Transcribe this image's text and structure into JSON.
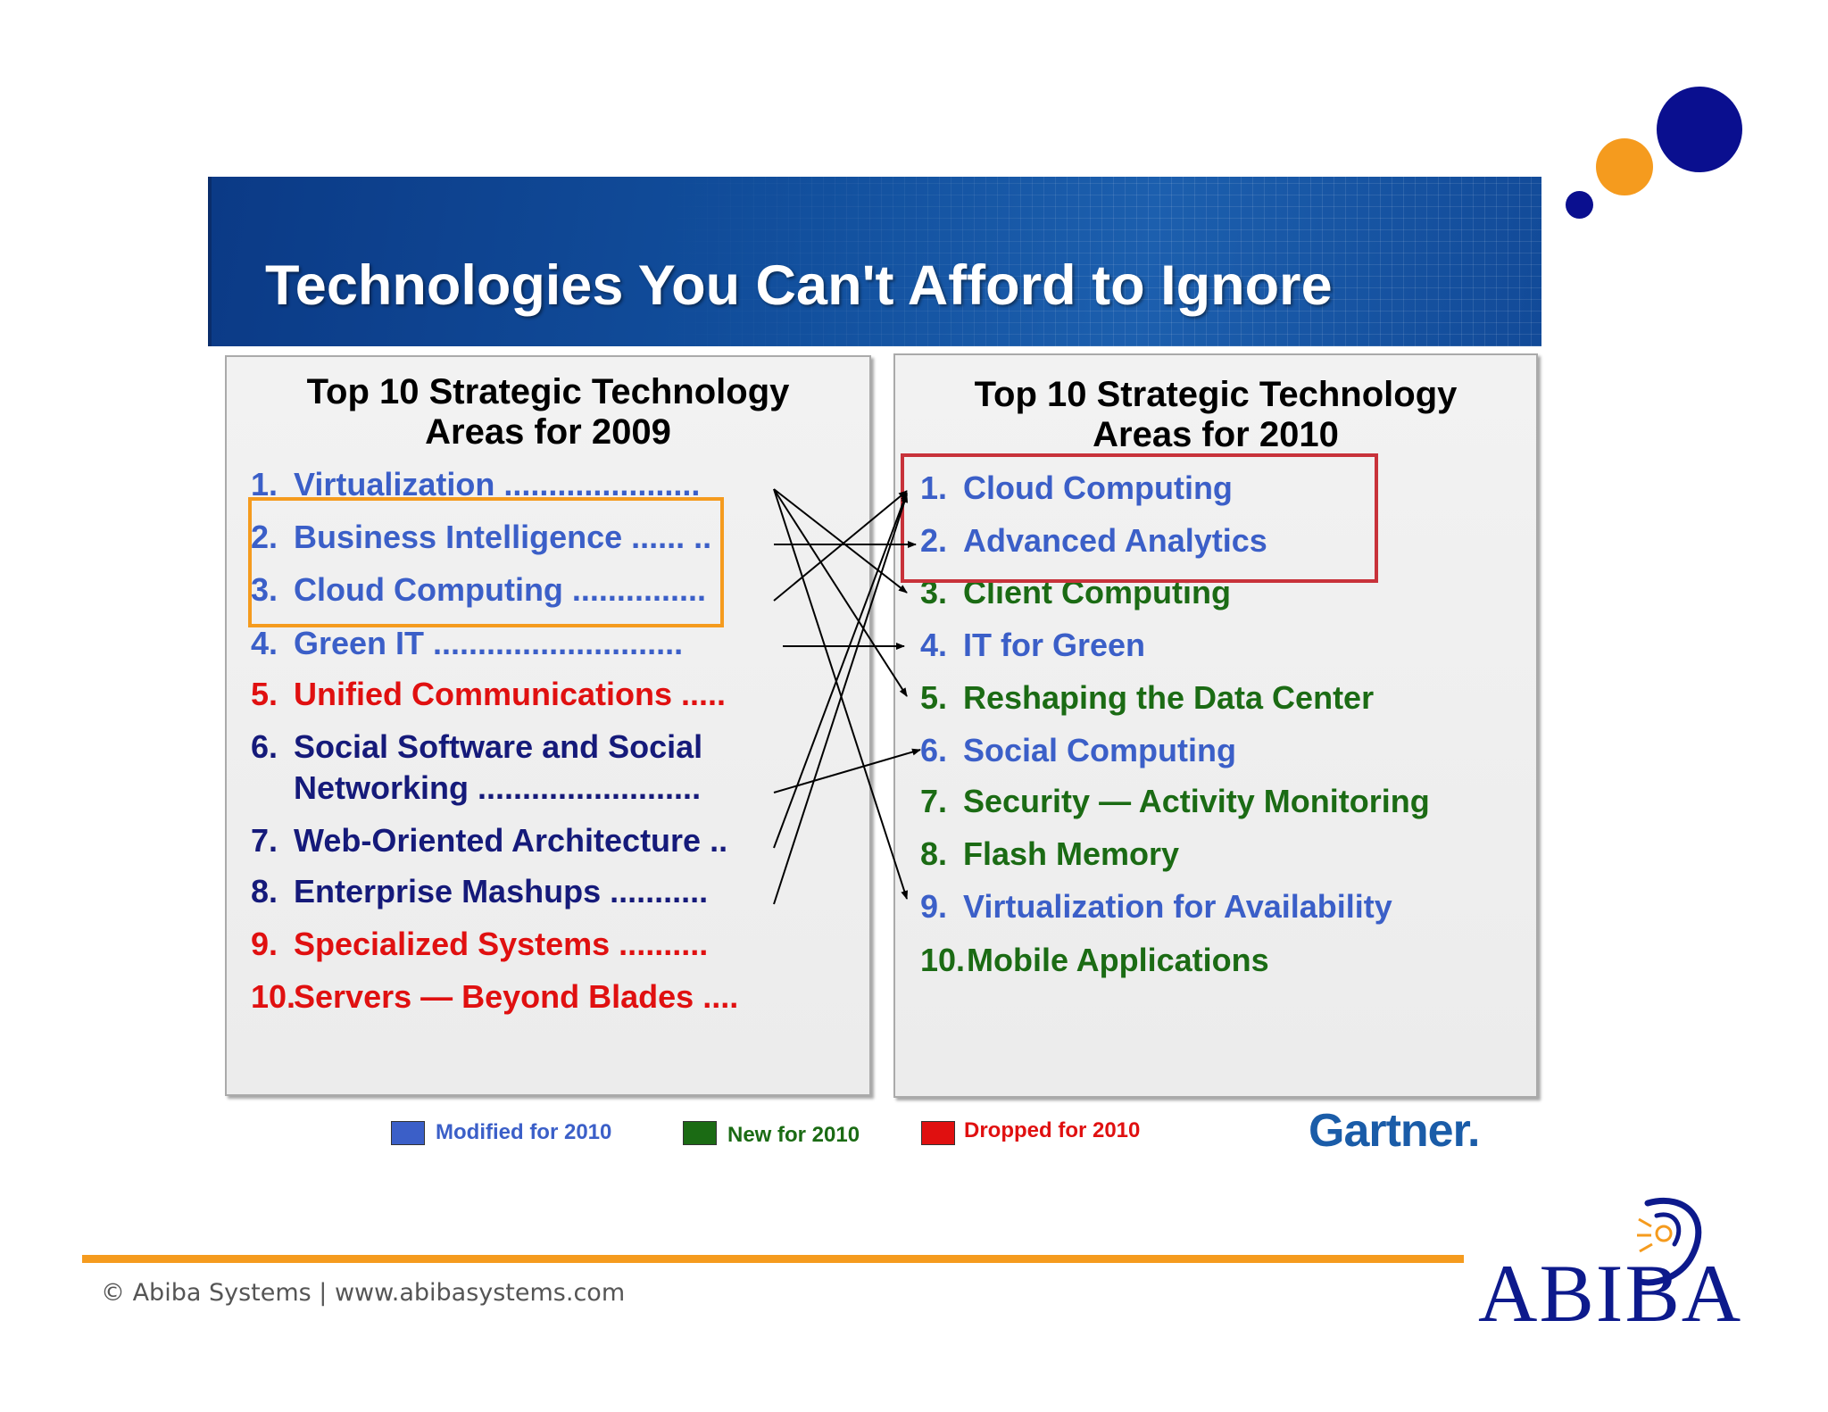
{
  "banner": {
    "title": "Technologies You Can't Afford to Ignore"
  },
  "panel_2009": {
    "title_line1": "Top 10 Strategic Technology",
    "title_line2": "Areas for 2009",
    "items": [
      {
        "num": "1.",
        "text": "Virtualization ......................"
      },
      {
        "num": "2.",
        "text": "Business Intelligence ...... .."
      },
      {
        "num": "3.",
        "text": "Cloud Computing ..............."
      },
      {
        "num": "4.",
        "text": "Green IT ............................"
      },
      {
        "num": "5.",
        "text": "Unified Communications ....."
      },
      {
        "num": "6.",
        "text": "Social Software and Social",
        "text2": "Networking ........................."
      },
      {
        "num": "7.",
        "text": "Web-Oriented Architecture .."
      },
      {
        "num": "8.",
        "text": "Enterprise Mashups ..........."
      },
      {
        "num": "9.",
        "text": "Specialized Systems .........."
      },
      {
        "num": "10.",
        "text": "Servers — Beyond Blades  ...."
      }
    ]
  },
  "panel_2010": {
    "title_line1": "Top 10 Strategic Technology",
    "title_line2": "Areas for 2010",
    "items": [
      {
        "num": "1.",
        "text": "Cloud Computing"
      },
      {
        "num": "2.",
        "text": "Advanced Analytics"
      },
      {
        "num": "3.",
        "text": "Client Computing"
      },
      {
        "num": "4.",
        "text": "IT for Green"
      },
      {
        "num": "5.",
        "text": "Reshaping the Data Center"
      },
      {
        "num": "6.",
        "text": "Social Computing"
      },
      {
        "num": "7.",
        "text": "Security — Activity Monitoring"
      },
      {
        "num": "8.",
        "text": "Flash Memory"
      },
      {
        "num": "9.",
        "text": "Virtualization for Availability"
      },
      {
        "num": "10.",
        "text": "Mobile Applications"
      }
    ]
  },
  "legend": {
    "modified": "Modified for 2010",
    "new": "New for 2010",
    "dropped": "Dropped for 2010"
  },
  "source_label": "Gartner.",
  "footer": {
    "text": "© Abiba Systems | www.abibasystems.com",
    "logo_text": "ABIBA"
  },
  "colors": {
    "modified": "#3b5fc8",
    "new": "#1b6b14",
    "dropped": "#e01010",
    "unchanged": "#151a7a",
    "accent_orange": "#f59b1e",
    "navy": "#0d1a8c"
  }
}
